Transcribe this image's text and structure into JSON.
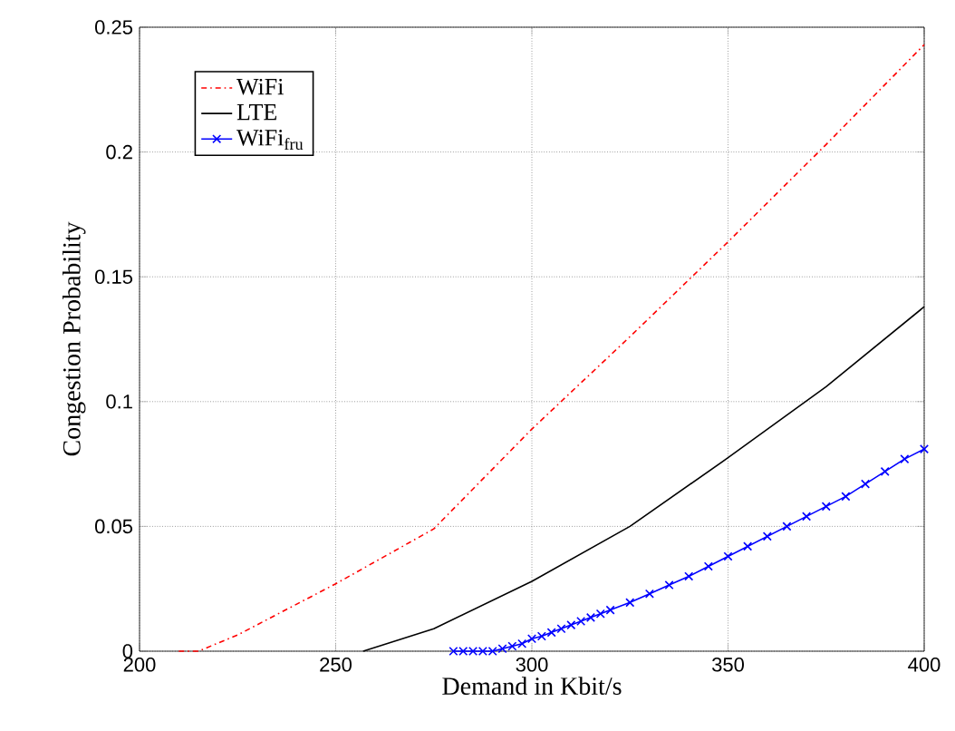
{
  "chart_data": {
    "type": "line",
    "xlabel": "Demand in Kbit/s",
    "ylabel": "Congestion Probability",
    "xlim": [
      200,
      400
    ],
    "ylim": [
      0,
      0.25
    ],
    "xticks": [
      200,
      250,
      300,
      350,
      400
    ],
    "yticks": [
      0,
      0.05,
      0.1,
      0.15,
      0.2,
      0.25
    ],
    "grid": true,
    "legend": "top left",
    "series": [
      {
        "name": "WiFi",
        "color": "#ff0000",
        "line_style": "dashdot",
        "marker": "none",
        "x": [
          210,
          215,
          225,
          250,
          275,
          300,
          325,
          350,
          375,
          400
        ],
        "values": [
          0,
          0,
          0.0065,
          0.027,
          0.049,
          0.089,
          0.126,
          0.164,
          0.203,
          0.243
        ]
      },
      {
        "name": "LTE",
        "color": "#000000",
        "line_style": "solid",
        "marker": "none",
        "x": [
          257,
          275,
          300,
          325,
          350,
          375,
          400
        ],
        "values": [
          0,
          0.009,
          0.028,
          0.05,
          0.0775,
          0.106,
          0.138
        ]
      },
      {
        "name": "WiFi$_{fru}$",
        "color": "#0000ff",
        "line_style": "solid",
        "marker": "cross",
        "x": [
          280,
          282.5,
          285,
          287.5,
          290,
          292.5,
          295,
          297.5,
          300,
          302.5,
          305,
          307.5,
          310,
          312.5,
          315,
          317.5,
          320,
          325,
          330,
          335,
          340,
          345,
          350,
          355,
          360,
          365,
          370,
          375,
          380,
          385,
          390,
          395,
          400
        ],
        "values": [
          0,
          0,
          0,
          0,
          0,
          0.001,
          0.002,
          0.003,
          0.005,
          0.006,
          0.0075,
          0.009,
          0.0105,
          0.012,
          0.0135,
          0.015,
          0.0165,
          0.0195,
          0.023,
          0.0265,
          0.03,
          0.034,
          0.038,
          0.042,
          0.046,
          0.05,
          0.054,
          0.058,
          0.062,
          0.067,
          0.072,
          0.077,
          0.081
        ]
      }
    ]
  }
}
